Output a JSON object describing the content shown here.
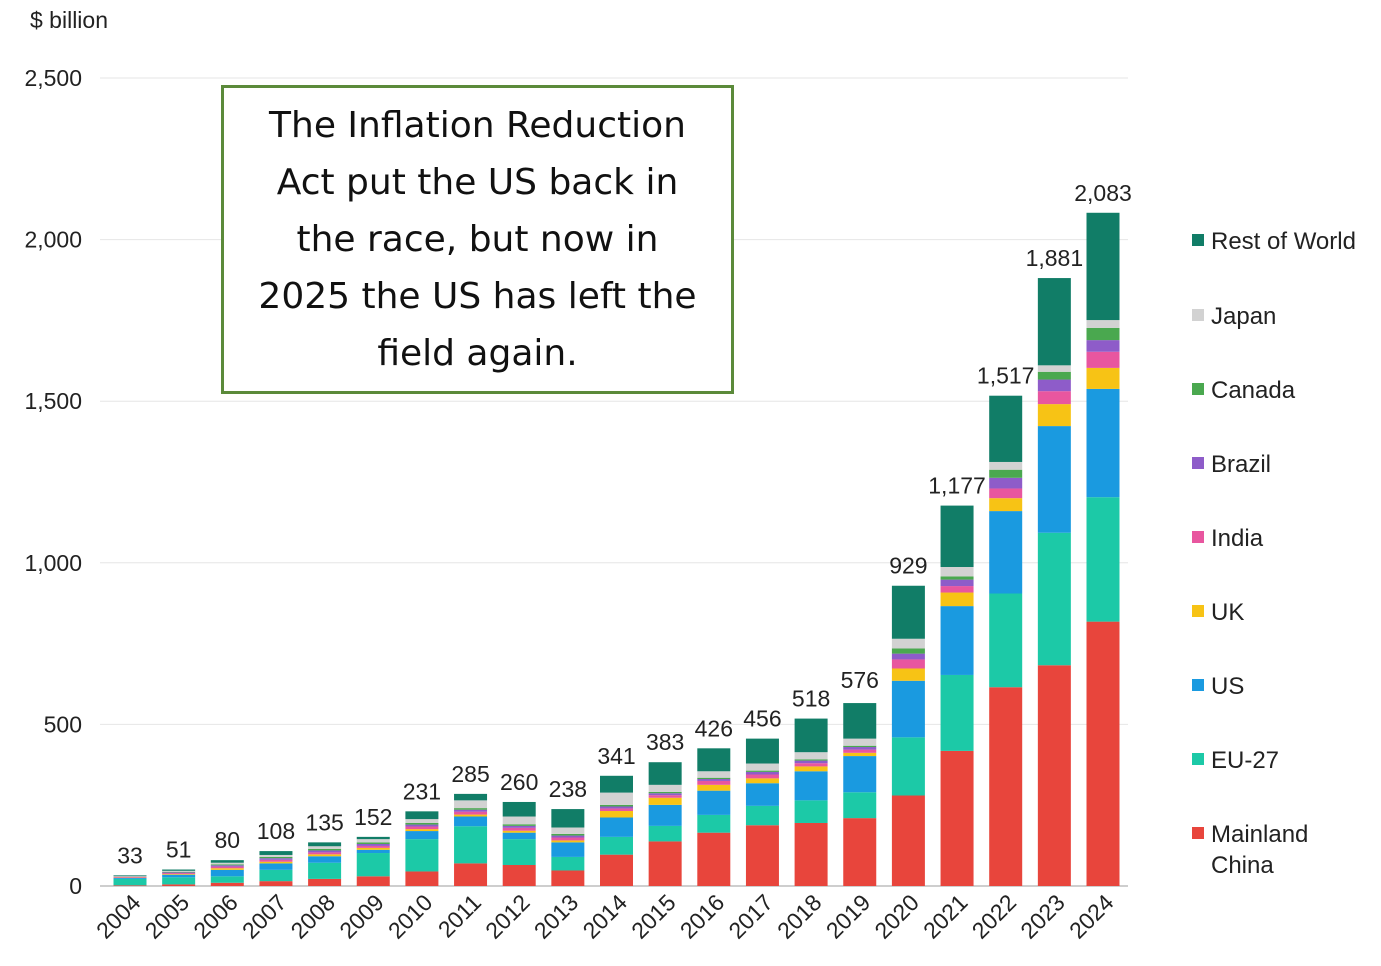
{
  "chart_data": {
    "type": "bar",
    "stacked": true,
    "unit_label": "$ billion",
    "categories": [
      "2004",
      "2005",
      "2006",
      "2007",
      "2008",
      "2009",
      "2010",
      "2011",
      "2012",
      "2013",
      "2014",
      "2015",
      "2016",
      "2017",
      "2018",
      "2019",
      "2020",
      "2021",
      "2022",
      "2023",
      "2024"
    ],
    "totals": [
      33,
      51,
      80,
      108,
      135,
      152,
      231,
      285,
      260,
      238,
      341,
      383,
      426,
      456,
      518,
      576,
      929,
      1177,
      1517,
      1881,
      2083
    ],
    "total_labels": [
      "33",
      "51",
      "80",
      "108",
      "135",
      "152",
      "231",
      "285",
      "260",
      "238",
      "341",
      "383",
      "426",
      "456",
      "518",
      "576",
      "929",
      "1,177",
      "1,517",
      "1,881",
      "2,083"
    ],
    "ylim": [
      0,
      2500
    ],
    "yticks": [
      0,
      500,
      1000,
      1500,
      2000,
      2500
    ],
    "ytick_labels": [
      "0",
      "500",
      "1,000",
      "1,500",
      "2,000",
      "2,500"
    ],
    "grid": true,
    "legend_position": "right",
    "series": [
      {
        "name": "Mainland China",
        "color": "#e8453c",
        "values": [
          2,
          5,
          10,
          15,
          22,
          30,
          45,
          70,
          65,
          48,
          97,
          138,
          165,
          188,
          195,
          210,
          280,
          418,
          615,
          683,
          818
        ]
      },
      {
        "name": "EU-27",
        "color": "#1cc9a7",
        "values": [
          20,
          22,
          20,
          35,
          50,
          72,
          100,
          115,
          80,
          42,
          55,
          48,
          55,
          60,
          70,
          80,
          180,
          235,
          290,
          410,
          385
        ]
      },
      {
        "name": "US",
        "color": "#1a9ae0",
        "values": [
          3,
          8,
          20,
          20,
          20,
          10,
          25,
          30,
          20,
          45,
          60,
          65,
          75,
          70,
          90,
          112,
          175,
          213,
          255,
          330,
          335
        ]
      },
      {
        "name": "UK",
        "color": "#f7c315",
        "values": [
          1,
          2,
          5,
          5,
          6,
          6,
          6,
          6,
          6,
          6,
          20,
          22,
          18,
          15,
          15,
          10,
          38,
          42,
          40,
          68,
          65
        ]
      },
      {
        "name": "India",
        "color": "#e8569f",
        "values": [
          2,
          3,
          5,
          6,
          6,
          6,
          8,
          9,
          9,
          9,
          8,
          8,
          12,
          12,
          10,
          10,
          28,
          20,
          30,
          40,
          50
        ]
      },
      {
        "name": "Brazil",
        "color": "#8e5cc9",
        "values": [
          1,
          2,
          4,
          5,
          6,
          6,
          6,
          6,
          6,
          6,
          6,
          6,
          6,
          8,
          8,
          8,
          18,
          20,
          33,
          36,
          36
        ]
      },
      {
        "name": "Canada",
        "color": "#4aa84f",
        "values": [
          1,
          2,
          3,
          4,
          5,
          5,
          5,
          5,
          5,
          5,
          5,
          4,
          4,
          4,
          4,
          4,
          16,
          10,
          25,
          24,
          38
        ]
      },
      {
        "name": "Japan",
        "color": "#d2d2d2",
        "values": [
          1,
          3,
          5,
          6,
          8,
          10,
          12,
          24,
          24,
          20,
          38,
          22,
          20,
          22,
          22,
          22,
          30,
          29,
          24,
          20,
          24
        ]
      },
      {
        "name": "Rest of World",
        "color": "#117d67",
        "values": [
          2,
          4,
          8,
          12,
          12,
          7,
          24,
          20,
          45,
          57,
          52,
          70,
          71,
          77,
          104,
          110,
          164,
          190,
          205,
          270,
          332
        ]
      }
    ],
    "legend_labels": {
      "rest_of_world": "Rest of World",
      "japan": "Japan",
      "canada": "Canada",
      "brazil": "Brazil",
      "india": "India",
      "uk": "UK",
      "us": "US",
      "eu27": "EU-27",
      "china_line1": "Mainland",
      "china_line2": "China"
    }
  },
  "annotation": {
    "lines": [
      "The Inflation Reduction",
      "Act put the US back in",
      "the race, but now in",
      "2025 the US has left the",
      "field again."
    ]
  }
}
